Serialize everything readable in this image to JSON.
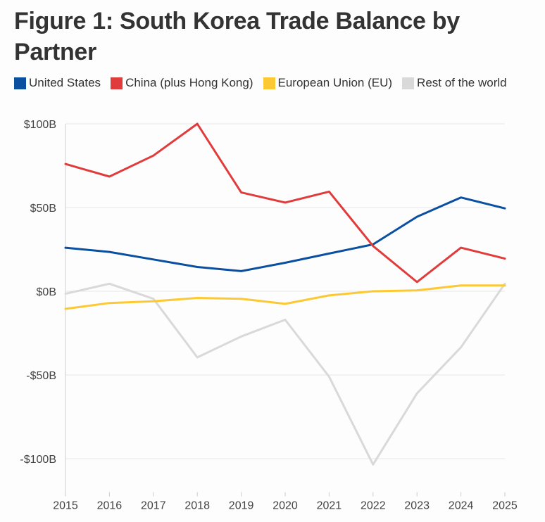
{
  "chart_data": {
    "type": "line",
    "title": "Figure 1: South Korea Trade Balance by Partner",
    "xlabel": "",
    "ylabel": "",
    "x": [
      "2015",
      "2016",
      "2017",
      "2018",
      "2019",
      "2020",
      "2021",
      "2022",
      "2023",
      "2024",
      "2025"
    ],
    "ylim": [
      -120,
      100
    ],
    "y_ticks": [
      100,
      50,
      0,
      -50,
      -100
    ],
    "y_tick_labels": [
      "$100B",
      "$50B",
      "$0B",
      "-$50B",
      "-$100B"
    ],
    "grid": true,
    "legend": "top-left",
    "series": [
      {
        "name": "United States",
        "color": "#0a4fa0",
        "values": [
          26,
          23.5,
          19,
          14.5,
          12,
          17,
          22.5,
          28,
          44.5,
          56,
          49.5
        ]
      },
      {
        "name": "China (plus Hong Kong)",
        "color": "#e03c3c",
        "values": [
          76,
          68.5,
          81,
          100,
          59,
          53,
          59.5,
          27,
          5.5,
          26,
          19.5
        ]
      },
      {
        "name": "European Union (EU)",
        "color": "#fcc934",
        "values": [
          -10.5,
          -7,
          -6,
          -4,
          -4.5,
          -7.5,
          -2.5,
          0,
          0.5,
          3.5,
          3.5
        ]
      },
      {
        "name": "Rest of the world",
        "color": "#d9d9d9",
        "values": [
          -1.5,
          4.5,
          -4.5,
          -39.5,
          -27,
          -17,
          -51,
          -103.5,
          -61,
          -33.5,
          4.5
        ]
      }
    ]
  }
}
